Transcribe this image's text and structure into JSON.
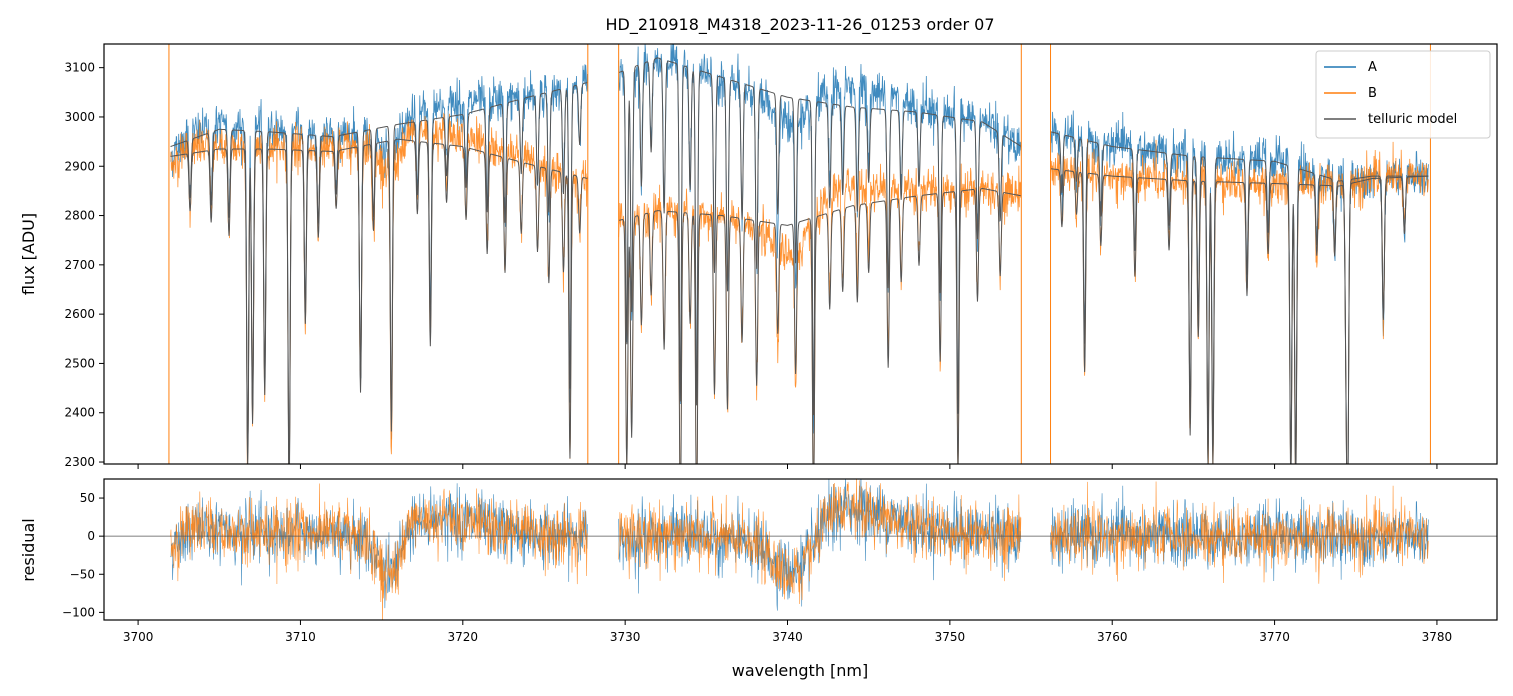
{
  "chart_data": [
    {
      "type": "line",
      "panel": "flux",
      "title": "HD_210918_M4318_2023-11-26_01253  order 07",
      "xlabel": "",
      "ylabel": "flux [ADU]",
      "xlim": [
        3697.9,
        3783.7
      ],
      "ylim": [
        2296,
        3148
      ],
      "xticks": [
        3700,
        3710,
        3720,
        3730,
        3740,
        3750,
        3760,
        3770,
        3780
      ],
      "xtick_labels_shown": false,
      "yticks": [
        2300,
        2400,
        2500,
        2600,
        2700,
        2800,
        2900,
        3000,
        3100
      ],
      "grid": false,
      "legend": {
        "placement": "top-right",
        "entries": [
          "A",
          "B",
          "telluric model"
        ]
      },
      "segments": [
        {
          "x_start": 3702.0,
          "x_end": 3727.7
        },
        {
          "x_start": 3729.6,
          "x_end": 3754.4
        },
        {
          "x_start": 3756.2,
          "x_end": 3779.5
        }
      ],
      "series": [
        {
          "name": "A",
          "color": "#1f77b4",
          "continuum": [
            [
              3702.0,
              2940
            ],
            [
              3705,
              2975
            ],
            [
              3708,
              2970
            ],
            [
              3712,
              2960
            ],
            [
              3716,
              2985
            ],
            [
              3720,
              3005
            ],
            [
              3724,
              3040
            ],
            [
              3727.7,
              3070
            ],
            [
              3729.6,
              3090
            ],
            [
              3732,
              3120
            ],
            [
              3736,
              3080
            ],
            [
              3740,
              3040
            ],
            [
              3744,
              3020
            ],
            [
              3748,
              3010
            ],
            [
              3752,
              2990
            ],
            [
              3754.4,
              2940
            ],
            [
              3756.2,
              2970
            ],
            [
              3760,
              2940
            ],
            [
              3765,
              2920
            ],
            [
              3770,
              2910
            ],
            [
              3774,
              2870
            ],
            [
              3776,
              2880
            ],
            [
              3779.5,
              2880
            ]
          ]
        },
        {
          "name": "B",
          "color": "#ff7f0e",
          "continuum": [
            [
              3702.0,
              2920
            ],
            [
              3705,
              2935
            ],
            [
              3708,
              2935
            ],
            [
              3712,
              2930
            ],
            [
              3716,
              2955
            ],
            [
              3720,
              2940
            ],
            [
              3724,
              2905
            ],
            [
              3727.7,
              2875
            ],
            [
              3729.6,
              2790
            ],
            [
              3732,
              2810
            ],
            [
              3736,
              2800
            ],
            [
              3740,
              2780
            ],
            [
              3744,
              2820
            ],
            [
              3748,
              2840
            ],
            [
              3752,
              2855
            ],
            [
              3754.4,
              2840
            ],
            [
              3756.2,
              2895
            ],
            [
              3760,
              2880
            ],
            [
              3765,
              2870
            ],
            [
              3770,
              2865
            ],
            [
              3774,
              2860
            ],
            [
              3776,
              2875
            ],
            [
              3779.5,
              2880
            ]
          ]
        },
        {
          "name": "telluric model",
          "color": "#555555"
        }
      ],
      "absorption_lines": [
        {
          "x": 3703.2,
          "depth": 0.04
        },
        {
          "x": 3704.5,
          "depth": 0.05
        },
        {
          "x": 3705.6,
          "depth": 0.06
        },
        {
          "x": 3706.75,
          "depth": 0.22
        },
        {
          "x": 3707.05,
          "depth": 0.19
        },
        {
          "x": 3707.8,
          "depth": 0.17
        },
        {
          "x": 3709.3,
          "depth": 0.24
        },
        {
          "x": 3710.3,
          "depth": 0.12
        },
        {
          "x": 3711.1,
          "depth": 0.06
        },
        {
          "x": 3712.2,
          "depth": 0.04
        },
        {
          "x": 3713.7,
          "depth": 0.17
        },
        {
          "x": 3714.5,
          "depth": 0.06
        },
        {
          "x": 3715.6,
          "depth": 0.2
        },
        {
          "x": 3717.2,
          "depth": 0.05
        },
        {
          "x": 3718.0,
          "depth": 0.14
        },
        {
          "x": 3719.0,
          "depth": 0.04
        },
        {
          "x": 3720.2,
          "depth": 0.05
        },
        {
          "x": 3721.5,
          "depth": 0.07
        },
        {
          "x": 3722.6,
          "depth": 0.08
        },
        {
          "x": 3723.6,
          "depth": 0.05
        },
        {
          "x": 3724.6,
          "depth": 0.06
        },
        {
          "x": 3725.3,
          "depth": 0.08
        },
        {
          "x": 3726.2,
          "depth": 0.07
        },
        {
          "x": 3726.6,
          "depth": 0.2
        },
        {
          "x": 3727.2,
          "depth": 0.04
        },
        {
          "x": 3730.1,
          "depth": 0.18
        },
        {
          "x": 3730.4,
          "depth": 0.16
        },
        {
          "x": 3731.0,
          "depth": 0.08
        },
        {
          "x": 3731.6,
          "depth": 0.06
        },
        {
          "x": 3732.4,
          "depth": 0.1
        },
        {
          "x": 3733.4,
          "depth": 0.22
        },
        {
          "x": 3734.0,
          "depth": 0.08
        },
        {
          "x": 3734.4,
          "depth": 0.22
        },
        {
          "x": 3735.5,
          "depth": 0.13
        },
        {
          "x": 3736.3,
          "depth": 0.14
        },
        {
          "x": 3737.2,
          "depth": 0.09
        },
        {
          "x": 3738.1,
          "depth": 0.12
        },
        {
          "x": 3739.4,
          "depth": 0.08
        },
        {
          "x": 3740.5,
          "depth": 0.11
        },
        {
          "x": 3741.6,
          "depth": 0.21
        },
        {
          "x": 3742.6,
          "depth": 0.07
        },
        {
          "x": 3743.4,
          "depth": 0.06
        },
        {
          "x": 3744.3,
          "depth": 0.07
        },
        {
          "x": 3745.0,
          "depth": 0.05
        },
        {
          "x": 3746.2,
          "depth": 0.12
        },
        {
          "x": 3747.0,
          "depth": 0.06
        },
        {
          "x": 3748.1,
          "depth": 0.05
        },
        {
          "x": 3749.4,
          "depth": 0.12
        },
        {
          "x": 3750.5,
          "depth": 0.2
        },
        {
          "x": 3751.7,
          "depth": 0.08
        },
        {
          "x": 3753.1,
          "depth": 0.06
        },
        {
          "x": 3756.9,
          "depth": 0.04
        },
        {
          "x": 3757.8,
          "depth": 0.03
        },
        {
          "x": 3758.3,
          "depth": 0.14
        },
        {
          "x": 3759.3,
          "depth": 0.05
        },
        {
          "x": 3761.4,
          "depth": 0.07
        },
        {
          "x": 3763.5,
          "depth": 0.05
        },
        {
          "x": 3764.8,
          "depth": 0.18
        },
        {
          "x": 3765.3,
          "depth": 0.11
        },
        {
          "x": 3765.9,
          "depth": 0.2
        },
        {
          "x": 3766.2,
          "depth": 0.2
        },
        {
          "x": 3768.3,
          "depth": 0.08
        },
        {
          "x": 3769.6,
          "depth": 0.05
        },
        {
          "x": 3771.0,
          "depth": 0.21
        },
        {
          "x": 3771.3,
          "depth": 0.21
        },
        {
          "x": 3772.6,
          "depth": 0.05
        },
        {
          "x": 3773.7,
          "depth": 0.05
        },
        {
          "x": 3774.4,
          "depth": 0.1
        },
        {
          "x": 3774.5,
          "depth": 0.21
        },
        {
          "x": 3776.7,
          "depth": 0.1
        },
        {
          "x": 3778.0,
          "depth": 0.04
        }
      ],
      "vertical_spikes_B": [
        3701.9,
        3727.7,
        3729.6,
        3754.4,
        3756.2,
        3779.6
      ]
    },
    {
      "type": "line",
      "panel": "residual",
      "xlabel": "wavelength [nm]",
      "ylabel": "residual",
      "xlim": [
        3697.9,
        3783.7
      ],
      "ylim": [
        -110,
        75
      ],
      "xticks": [
        3700,
        3710,
        3720,
        3730,
        3740,
        3750,
        3760,
        3770,
        3780
      ],
      "xtick_labels": [
        "3700",
        "3710",
        "3720",
        "3730",
        "3740",
        "3750",
        "3760",
        "3770",
        "3780"
      ],
      "yticks": [
        -100,
        -50,
        0,
        50
      ],
      "ytick_labels": [
        "−100",
        "−50",
        "0",
        "50"
      ],
      "reference_line": 0,
      "grid": false,
      "series": [
        {
          "name": "A",
          "color": "#1f77b4",
          "noise_sigma": 20
        },
        {
          "name": "B",
          "color": "#ff7f0e",
          "noise_sigma": 20
        }
      ],
      "residual_trend": [
        [
          3702,
          -20
        ],
        [
          3703,
          10
        ],
        [
          3706,
          5
        ],
        [
          3710,
          5
        ],
        [
          3714,
          0
        ],
        [
          3715.5,
          -60
        ],
        [
          3717,
          20
        ],
        [
          3719,
          25
        ],
        [
          3722,
          10
        ],
        [
          3725,
          0
        ],
        [
          3727.7,
          0
        ],
        [
          3729.6,
          0
        ],
        [
          3735,
          0
        ],
        [
          3738,
          -10
        ],
        [
          3740,
          -50
        ],
        [
          3741,
          -40
        ],
        [
          3742.5,
          25
        ],
        [
          3744,
          40
        ],
        [
          3746,
          25
        ],
        [
          3750,
          5
        ],
        [
          3754.4,
          0
        ],
        [
          3756.2,
          0
        ],
        [
          3779.5,
          0
        ]
      ]
    }
  ]
}
